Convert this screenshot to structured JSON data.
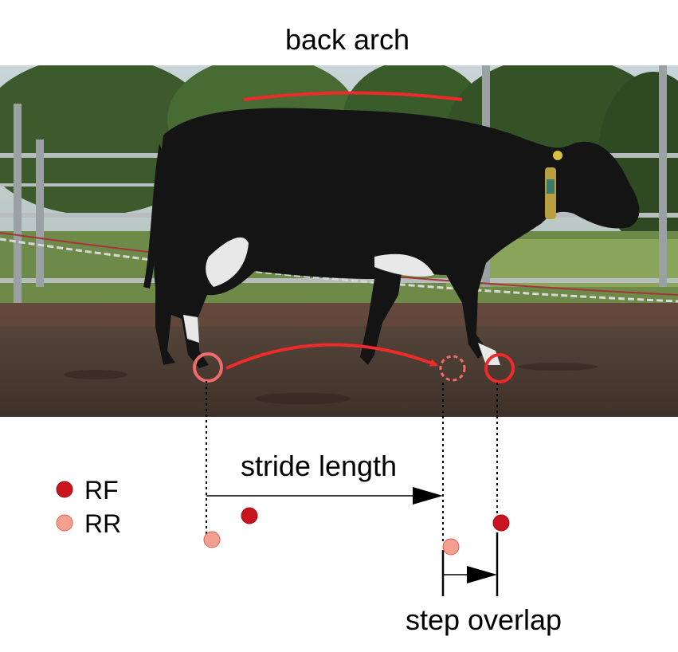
{
  "labels": {
    "back_arch": "back arch",
    "stride_length": "stride length",
    "step_overlap": "step overlap"
  },
  "legend": [
    {
      "label": "RF",
      "color": "#c8141e"
    },
    {
      "label": "RR",
      "color": "#f4a090"
    }
  ],
  "colors": {
    "annotation_red": "#ee2a2a",
    "rf": "#c8141e",
    "rr": "#f4a090",
    "rr_outline": "#f26b6b"
  },
  "photo": {
    "subject": "black dairy cow walking in an outdoor pen"
  }
}
